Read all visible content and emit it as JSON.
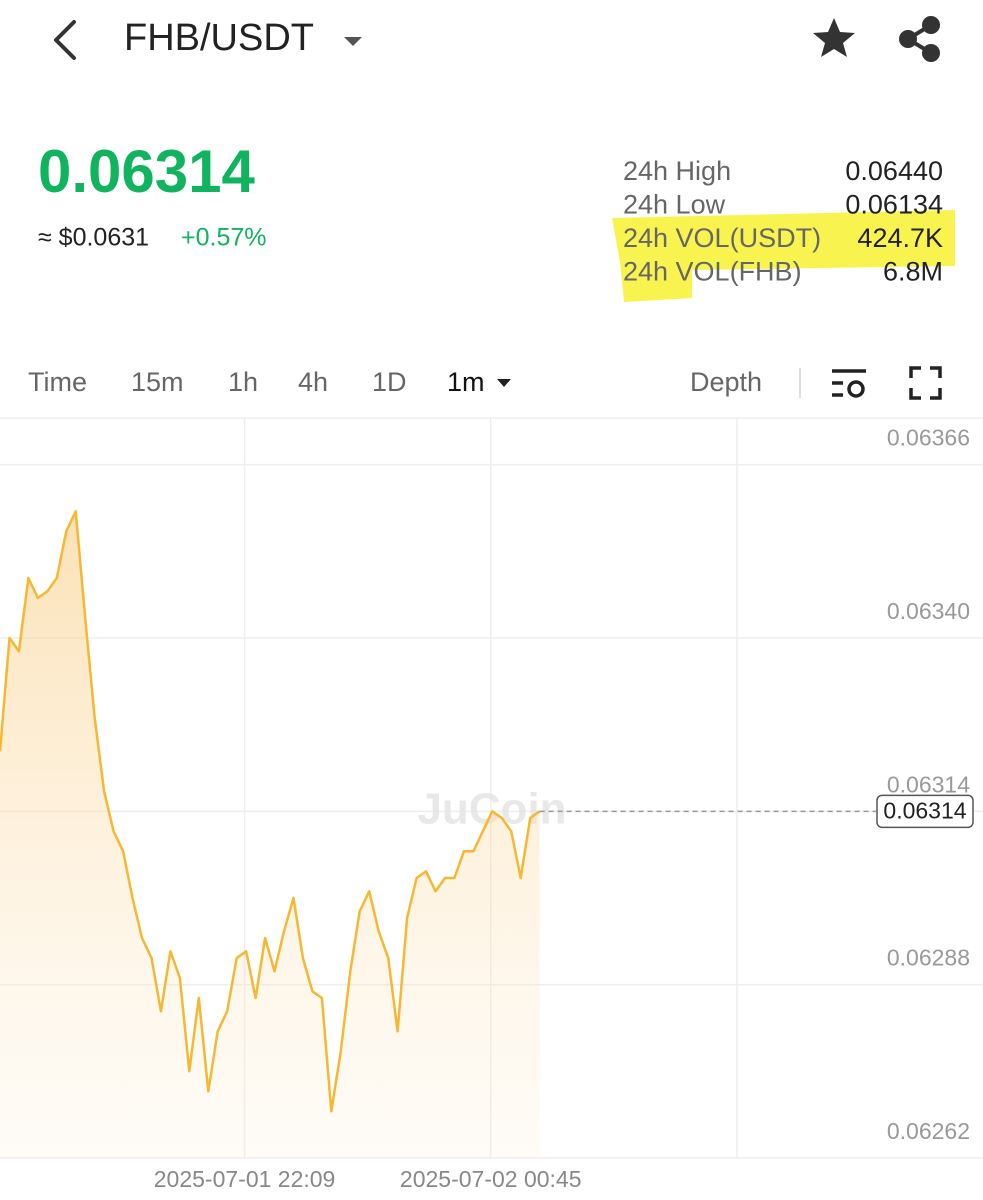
{
  "header": {
    "title": "FHB/USDT",
    "price": "0.06314",
    "usd_price": "≈ $0.0631",
    "change": "+0.57%"
  },
  "stats": [
    {
      "label": "24h High",
      "value": "0.06440"
    },
    {
      "label": "24h Low",
      "value": "0.06134"
    },
    {
      "label": "24h VOL(USDT)",
      "value": "424.7K"
    },
    {
      "label": "24h VOL(FHB)",
      "value": "6.8M"
    }
  ],
  "tabs": [
    "Time",
    "15m",
    "1h",
    "4h",
    "1D",
    "1m",
    "Depth"
  ],
  "chart_data": {
    "type": "line",
    "watermark": "JuCoin",
    "color": "#f6b733",
    "grid": true,
    "x": [
      "2025-07-01 19:34",
      "2025-07-01 19:40",
      "2025-07-01 19:46",
      "2025-07-01 19:52",
      "2025-07-01 19:58",
      "2025-07-01 20:04",
      "2025-07-01 20:10",
      "2025-07-01 20:16",
      "2025-07-01 20:22",
      "2025-07-01 20:28",
      "2025-07-01 20:34",
      "2025-07-01 20:40",
      "2025-07-01 20:46",
      "2025-07-01 20:52",
      "2025-07-01 20:58",
      "2025-07-01 21:04",
      "2025-07-01 21:10",
      "2025-07-01 21:16",
      "2025-07-01 21:22",
      "2025-07-01 21:28",
      "2025-07-01 21:34",
      "2025-07-01 21:40",
      "2025-07-01 21:46",
      "2025-07-01 21:52",
      "2025-07-01 21:58",
      "2025-07-01 22:04",
      "2025-07-01 22:10",
      "2025-07-01 22:16",
      "2025-07-01 22:22",
      "2025-07-01 22:28",
      "2025-07-01 22:34",
      "2025-07-01 22:40",
      "2025-07-01 22:46",
      "2025-07-01 22:52",
      "2025-07-01 22:58",
      "2025-07-01 23:04",
      "2025-07-01 23:10",
      "2025-07-01 23:16",
      "2025-07-01 23:22",
      "2025-07-01 23:28",
      "2025-07-01 23:34",
      "2025-07-01 23:40",
      "2025-07-01 23:46",
      "2025-07-01 23:52",
      "2025-07-01 23:58",
      "2025-07-02 00:04",
      "2025-07-02 00:10",
      "2025-07-02 00:16",
      "2025-07-02 00:22",
      "2025-07-02 00:28",
      "2025-07-02 00:34",
      "2025-07-02 00:40",
      "2025-07-02 00:46",
      "2025-07-02 00:52",
      "2025-07-02 00:58",
      "2025-07-02 01:04",
      "2025-07-02 01:10",
      "2025-07-02 01:16"
    ],
    "values": [
      0.06323,
      0.0634,
      0.06338,
      0.06349,
      0.06346,
      0.06347,
      0.06349,
      0.06356,
      0.06359,
      0.06343,
      0.06328,
      0.06317,
      0.06311,
      0.06308,
      0.06301,
      0.06295,
      0.06292,
      0.06284,
      0.06293,
      0.06289,
      0.06275,
      0.06286,
      0.06272,
      0.06281,
      0.06284,
      0.06292,
      0.06293,
      0.06286,
      0.06295,
      0.0629,
      0.06296,
      0.06301,
      0.06292,
      0.06287,
      0.06286,
      0.06269,
      0.06278,
      0.0629,
      0.06299,
      0.06302,
      0.06296,
      0.06292,
      0.06281,
      0.06298,
      0.06304,
      0.06305,
      0.06302,
      0.06304,
      0.06304,
      0.06308,
      0.06308,
      0.06311,
      0.06314,
      0.06313,
      0.06311,
      0.06304,
      0.06313,
      0.06314
    ],
    "current_price": 0.06314,
    "xlim": [
      "2025-07-01 19:34",
      "2025-07-02 05:57"
    ],
    "xticks": [
      "2025-07-01 22:09",
      "2025-07-02 00:45"
    ],
    "ylim": [
      0.06262,
      0.06373
    ],
    "yticks": [
      0.06366,
      {
        "value": 0.0634,
        "label": "0.06340"
      },
      0.06314,
      0.06288,
      0.06262
    ]
  }
}
